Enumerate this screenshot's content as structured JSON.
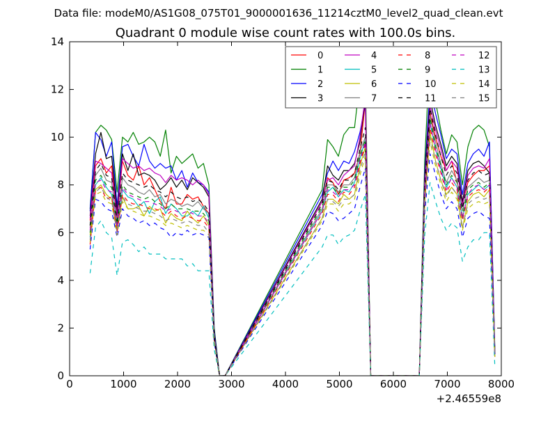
{
  "page": {
    "suptitle": "Data file: modeM0/AS1G08_075T01_9000001636_11214cztM0_level2_quad_clean.evt"
  },
  "chart_data": {
    "type": "line",
    "title": "Quadrant 0 module wise count rates with 100.0s bins.",
    "xlabel": "",
    "ylabel": "",
    "x_offset_label": "+2.46559e8",
    "xlim": [
      0,
      8000
    ],
    "ylim": [
      0,
      14
    ],
    "x_ticks": [
      0,
      1000,
      2000,
      3000,
      4000,
      5000,
      6000,
      7000,
      8000
    ],
    "x_tick_labels": [
      "0",
      "1000",
      "2000",
      "3000",
      "4000",
      "5000",
      "6000",
      "7000",
      "8000"
    ],
    "y_ticks": [
      0,
      2,
      4,
      6,
      8,
      10,
      12,
      14
    ],
    "y_tick_labels": [
      "0",
      "2",
      "4",
      "6",
      "8",
      "10",
      "12",
      "14"
    ],
    "grid": false,
    "legend_position": "top-right",
    "legend_columns": 4,
    "x": [
      380,
      480,
      580,
      680,
      780,
      880,
      980,
      1080,
      1180,
      1280,
      1380,
      1480,
      1580,
      1680,
      1780,
      1880,
      1980,
      2080,
      2180,
      2280,
      2380,
      2480,
      2580,
      2680,
      2780,
      2880,
      4680,
      4780,
      4880,
      4980,
      5080,
      5180,
      5280,
      5380,
      5480,
      5580,
      5680,
      6480,
      6580,
      6680,
      6780,
      6880,
      6980,
      7080,
      7180,
      7280,
      7380,
      7480,
      7580,
      7680,
      7780,
      7880
    ],
    "series": [
      {
        "name": "0",
        "color": "#ff0000",
        "dash": "solid",
        "values": [
          6.5,
          8.8,
          9.1,
          8.5,
          8.8,
          6.6,
          9.0,
          8.4,
          8.2,
          8.8,
          8.0,
          8.3,
          7.8,
          7.3,
          7.0,
          7.9,
          7.2,
          7.2,
          7.6,
          7.4,
          7.5,
          7.1,
          6.8,
          1.5,
          0,
          0,
          7.3,
          8.3,
          8.1,
          7.6,
          8.2,
          8.3,
          8.5,
          9.3,
          11.5,
          0,
          0,
          0,
          7.4,
          11.0,
          10.0,
          9.2,
          8.6,
          9.0,
          8.1,
          7.2,
          8.1,
          8.4,
          8.6,
          8.6,
          8.8,
          1.0
        ]
      },
      {
        "name": "1",
        "color": "#008000",
        "dash": "solid",
        "values": [
          7.0,
          10.2,
          10.5,
          10.3,
          9.9,
          7.7,
          10.0,
          9.8,
          10.2,
          9.7,
          9.8,
          10.0,
          9.8,
          9.2,
          10.3,
          8.5,
          9.2,
          8.9,
          9.1,
          9.3,
          8.7,
          8.9,
          8.0,
          2.0,
          0,
          0,
          7.8,
          9.9,
          9.6,
          9.2,
          10.1,
          10.4,
          10.4,
          12.4,
          12.6,
          0,
          0,
          0,
          9.0,
          13.7,
          11.5,
          10.3,
          9.3,
          10.1,
          9.8,
          8.0,
          9.6,
          10.3,
          10.5,
          10.3,
          9.6,
          1.2
        ]
      },
      {
        "name": "2",
        "color": "#0000ff",
        "dash": "solid",
        "values": [
          6.9,
          10.2,
          9.9,
          9.2,
          9.8,
          7.1,
          9.6,
          9.7,
          9.2,
          8.8,
          9.7,
          9.0,
          8.7,
          8.9,
          8.7,
          8.8,
          8.2,
          8.6,
          7.9,
          8.5,
          8.1,
          8.0,
          7.7,
          1.9,
          0,
          0,
          7.6,
          8.5,
          9.0,
          8.6,
          9.0,
          8.9,
          9.4,
          10.2,
          11.4,
          0,
          0,
          0,
          8.5,
          12.1,
          11.0,
          10.1,
          9.1,
          9.5,
          9.3,
          7.6,
          8.9,
          9.3,
          9.5,
          9.2,
          9.8,
          1.1
        ]
      },
      {
        "name": "3",
        "color": "#000000",
        "dash": "solid",
        "values": [
          6.7,
          9.3,
          10.2,
          9.1,
          9.2,
          6.9,
          9.3,
          8.6,
          9.3,
          8.4,
          8.5,
          8.4,
          8.2,
          7.8,
          8.0,
          8.3,
          7.9,
          8.2,
          7.8,
          8.3,
          8.1,
          7.9,
          7.5,
          1.8,
          0,
          0,
          7.4,
          8.8,
          8.4,
          8.2,
          8.6,
          8.6,
          8.9,
          9.8,
          11.6,
          0,
          0,
          0,
          8.3,
          11.6,
          10.5,
          9.7,
          8.8,
          9.2,
          8.9,
          7.3,
          8.6,
          8.9,
          9.0,
          8.8,
          8.5,
          1.0
        ]
      },
      {
        "name": "4",
        "color": "#bf00bf",
        "dash": "solid",
        "values": [
          6.6,
          9.0,
          8.9,
          8.7,
          8.5,
          6.7,
          9.1,
          8.9,
          8.7,
          8.8,
          8.6,
          8.7,
          8.5,
          8.4,
          8.1,
          8.4,
          8.2,
          8.3,
          8.2,
          8.0,
          8.2,
          8.0,
          7.6,
          1.7,
          0,
          0,
          7.3,
          8.2,
          8.3,
          8.0,
          8.4,
          8.6,
          8.8,
          10.0,
          11.7,
          0,
          0,
          0,
          8.1,
          11.3,
          10.3,
          9.5,
          8.6,
          9.0,
          8.7,
          7.1,
          8.4,
          8.7,
          8.8,
          8.7,
          9.1,
          1.0
        ]
      },
      {
        "name": "5",
        "color": "#00bfbf",
        "dash": "solid",
        "values": [
          5.8,
          8.0,
          8.3,
          7.9,
          7.6,
          6.2,
          7.8,
          7.5,
          7.4,
          7.1,
          7.3,
          6.8,
          7.3,
          7.5,
          6.8,
          7.2,
          7.0,
          6.7,
          6.7,
          6.9,
          6.7,
          7.1,
          6.6,
          1.6,
          0,
          0,
          6.9,
          7.7,
          7.9,
          7.5,
          7.8,
          7.7,
          8.1,
          9.1,
          9.9,
          0,
          0,
          0,
          7.6,
          10.6,
          9.5,
          8.7,
          7.9,
          8.3,
          7.9,
          6.6,
          7.6,
          7.8,
          8.0,
          7.8,
          8.0,
          0.9
        ]
      },
      {
        "name": "6",
        "color": "#bfbf00",
        "dash": "solid",
        "values": [
          5.9,
          7.8,
          8.0,
          7.6,
          7.4,
          6.1,
          7.5,
          7.0,
          7.0,
          7.1,
          6.7,
          7.1,
          6.9,
          7.0,
          6.4,
          6.8,
          6.6,
          6.5,
          6.9,
          6.6,
          6.4,
          6.7,
          6.3,
          1.5,
          0,
          0,
          6.6,
          7.4,
          7.4,
          7.2,
          7.6,
          7.4,
          7.6,
          8.8,
          9.6,
          0,
          0,
          0,
          7.3,
          10.2,
          9.0,
          8.2,
          7.6,
          7.9,
          7.6,
          6.2,
          7.3,
          7.6,
          7.7,
          7.5,
          7.8,
          0.8
        ]
      },
      {
        "name": "7",
        "color": "#808080",
        "dash": "solid",
        "values": [
          6.2,
          8.4,
          8.7,
          8.2,
          8.1,
          6.4,
          8.3,
          8.0,
          7.9,
          7.7,
          7.6,
          7.8,
          7.5,
          7.6,
          7.2,
          7.4,
          7.3,
          7.1,
          7.2,
          7.1,
          7.3,
          7.0,
          6.8,
          1.6,
          0,
          0,
          7.0,
          8.0,
          8.0,
          7.7,
          8.0,
          8.0,
          8.3,
          9.4,
          10.0,
          0,
          0,
          0,
          7.8,
          10.9,
          9.8,
          8.9,
          8.1,
          8.6,
          8.2,
          6.9,
          7.9,
          8.1,
          8.3,
          8.1,
          8.2,
          0.9
        ]
      },
      {
        "name": "8",
        "color": "#ff0000",
        "dash": "dash",
        "values": [
          5.5,
          7.8,
          7.9,
          7.4,
          7.5,
          6.0,
          7.6,
          7.3,
          7.2,
          7.2,
          7.1,
          7.0,
          7.0,
          6.9,
          6.7,
          6.9,
          6.7,
          6.6,
          6.7,
          6.6,
          6.5,
          6.5,
          6.2,
          1.5,
          0,
          0,
          6.8,
          7.6,
          7.6,
          7.3,
          7.7,
          7.6,
          7.9,
          8.9,
          9.7,
          0,
          0,
          0,
          7.5,
          10.4,
          9.3,
          8.5,
          7.7,
          8.1,
          7.8,
          6.5,
          7.5,
          7.7,
          7.8,
          7.7,
          7.9,
          0.8
        ]
      },
      {
        "name": "9",
        "color": "#008000",
        "dash": "dash",
        "values": [
          6.0,
          8.2,
          8.4,
          8.0,
          7.9,
          6.3,
          8.0,
          7.7,
          7.6,
          7.5,
          7.4,
          7.5,
          7.3,
          7.2,
          7.0,
          7.2,
          7.0,
          7.0,
          7.0,
          6.9,
          6.9,
          6.8,
          6.5,
          1.6,
          0,
          0,
          7.1,
          7.9,
          7.9,
          7.6,
          7.9,
          7.9,
          8.2,
          9.2,
          9.9,
          0,
          0,
          0,
          7.7,
          10.8,
          9.6,
          8.8,
          8.0,
          8.4,
          8.1,
          6.7,
          7.8,
          8.0,
          8.1,
          7.9,
          8.1,
          0.9
        ]
      },
      {
        "name": "10",
        "color": "#0000ff",
        "dash": "dash",
        "values": [
          5.3,
          7.4,
          7.3,
          7.0,
          6.9,
          5.8,
          7.0,
          6.7,
          6.6,
          6.4,
          6.5,
          6.3,
          6.4,
          6.2,
          6.1,
          5.8,
          6.0,
          5.9,
          6.1,
          5.9,
          6.0,
          5.9,
          5.8,
          1.4,
          0,
          0,
          6.3,
          6.9,
          6.8,
          6.5,
          6.6,
          6.8,
          7.0,
          7.9,
          8.7,
          0,
          0,
          0,
          6.8,
          9.3,
          8.4,
          7.6,
          7.0,
          7.3,
          7.0,
          5.8,
          6.6,
          6.8,
          6.9,
          6.7,
          6.6,
          0.8
        ]
      },
      {
        "name": "11",
        "color": "#000000",
        "dash": "dash",
        "values": [
          6.3,
          8.6,
          8.9,
          8.4,
          8.3,
          6.5,
          8.5,
          8.2,
          8.1,
          8.0,
          7.9,
          8.0,
          7.8,
          7.7,
          7.5,
          7.7,
          7.5,
          7.4,
          7.5,
          7.3,
          7.4,
          7.2,
          6.9,
          1.6,
          0,
          0,
          7.2,
          8.2,
          8.1,
          7.8,
          8.2,
          8.2,
          8.5,
          9.5,
          10.4,
          0,
          0,
          0,
          7.9,
          11.2,
          10.1,
          9.2,
          8.4,
          8.8,
          8.5,
          7.0,
          8.2,
          8.5,
          8.6,
          8.4,
          8.5,
          0.9
        ]
      },
      {
        "name": "12",
        "color": "#bf00bf",
        "dash": "dash",
        "values": [
          6.1,
          8.1,
          8.2,
          7.8,
          7.7,
          6.2,
          7.9,
          7.6,
          7.5,
          7.4,
          7.3,
          7.3,
          7.2,
          7.1,
          6.9,
          7.0,
          6.9,
          6.8,
          6.9,
          6.8,
          6.7,
          6.7,
          6.4,
          1.5,
          0,
          0,
          6.9,
          7.8,
          7.7,
          7.5,
          7.8,
          7.8,
          8.0,
          9.0,
          9.8,
          0,
          0,
          0,
          7.6,
          10.6,
          9.5,
          8.6,
          7.8,
          8.3,
          7.9,
          6.6,
          7.6,
          7.9,
          8.0,
          7.8,
          8.0,
          0.9
        ]
      },
      {
        "name": "13",
        "color": "#00bfbf",
        "dash": "dash",
        "values": [
          4.3,
          6.2,
          6.5,
          6.0,
          5.8,
          4.2,
          5.6,
          5.7,
          5.5,
          5.2,
          5.4,
          5.1,
          5.1,
          5.1,
          4.9,
          4.9,
          4.9,
          4.9,
          4.6,
          4.7,
          4.4,
          4.4,
          4.4,
          1.1,
          0,
          0,
          5.4,
          5.9,
          5.9,
          5.5,
          5.8,
          5.9,
          6.1,
          6.9,
          7.6,
          0,
          0,
          0,
          5.9,
          8.1,
          7.3,
          6.6,
          6.1,
          6.4,
          6.2,
          4.8,
          5.4,
          5.7,
          5.7,
          6.0,
          6.0,
          0.4
        ]
      },
      {
        "name": "14",
        "color": "#bfbf00",
        "dash": "dash",
        "values": [
          5.6,
          7.6,
          7.7,
          7.3,
          7.2,
          5.9,
          7.3,
          7.0,
          6.9,
          6.8,
          6.7,
          6.7,
          6.6,
          6.5,
          6.3,
          6.4,
          6.3,
          6.2,
          6.3,
          6.2,
          6.1,
          6.1,
          5.9,
          1.4,
          0,
          0,
          6.5,
          7.2,
          7.2,
          6.9,
          7.2,
          7.2,
          7.4,
          8.4,
          9.2,
          0,
          0,
          0,
          7.1,
          9.8,
          8.8,
          8.0,
          7.3,
          7.7,
          7.4,
          6.1,
          7.0,
          7.2,
          7.3,
          7.2,
          7.3,
          0.8
        ]
      },
      {
        "name": "15",
        "color": "#808080",
        "dash": "dash",
        "values": [
          5.7,
          7.7,
          7.9,
          7.5,
          7.3,
          6.0,
          7.5,
          7.2,
          7.1,
          7.0,
          6.9,
          6.9,
          6.8,
          6.7,
          6.5,
          6.6,
          6.5,
          6.4,
          6.5,
          6.4,
          6.3,
          6.3,
          6.0,
          1.5,
          0,
          0,
          6.6,
          7.4,
          7.3,
          7.1,
          7.4,
          7.4,
          7.6,
          8.6,
          9.4,
          0,
          0,
          0,
          7.2,
          10.0,
          9.0,
          8.2,
          7.5,
          7.9,
          7.6,
          6.2,
          7.2,
          7.4,
          7.5,
          7.4,
          7.5,
          0.8
        ]
      }
    ]
  }
}
